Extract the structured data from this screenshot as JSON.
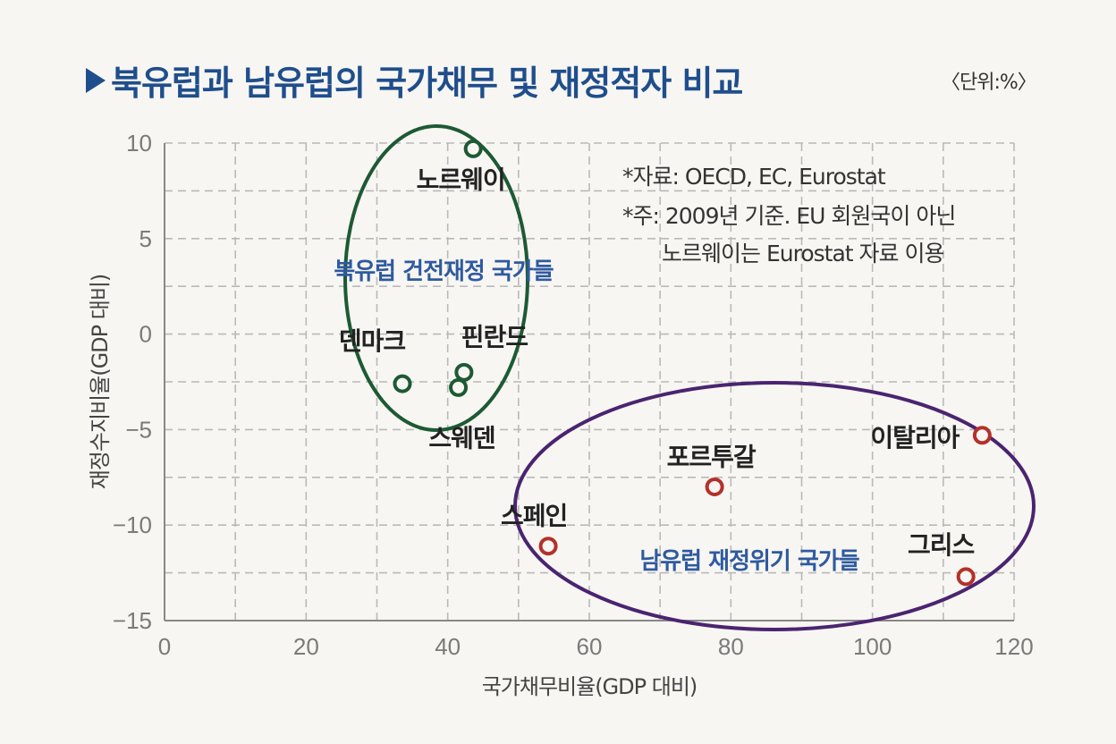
{
  "title": "북유럽과 남유럽의 국가채무 및 재정적자 비교",
  "unit": "〈단위:%〉",
  "notes": [
    "*자료: OECD, EC, Eurostat",
    "*주: 2009년 기준. EU 회원국이 아닌",
    "노르웨이는 Eurostat 자료 이용"
  ],
  "groups": [
    {
      "label": "북유럽 건전재정 국가들",
      "color": "#1d5a34"
    },
    {
      "label": "남유럽 재정위기 국가들",
      "color": "#4a2470"
    }
  ],
  "chart_data": {
    "type": "scatter",
    "xlabel": "국가채무비율(GDP 대비)",
    "ylabel": "재정수지비율(GDP 대비)",
    "xlim": [
      0,
      120
    ],
    "ylim": [
      -15,
      10
    ],
    "xticks": [
      0,
      20,
      40,
      60,
      80,
      100,
      120
    ],
    "yticks": [
      10,
      5,
      0,
      -5,
      -10,
      -15
    ],
    "grid": true,
    "series": [
      {
        "name": "북유럽 건전재정 국가들",
        "color": "#1d5a34",
        "points": [
          {
            "label": "노르웨이",
            "x": 43.6,
            "y": 9.7
          },
          {
            "label": "덴마크",
            "x": 33.6,
            "y": -2.6
          },
          {
            "label": "핀란드",
            "x": 42.3,
            "y": -2.0
          },
          {
            "label": "스웨덴",
            "x": 41.5,
            "y": -2.8
          }
        ]
      },
      {
        "name": "남유럽 재정위기 국가들",
        "color": "#b5302a",
        "points": [
          {
            "label": "이탈리아",
            "x": 115.5,
            "y": -5.3
          },
          {
            "label": "포르투갈",
            "x": 77.7,
            "y": -8.0
          },
          {
            "label": "스페인",
            "x": 54.2,
            "y": -11.1
          },
          {
            "label": "그리스",
            "x": 113.2,
            "y": -12.7
          }
        ]
      }
    ]
  }
}
